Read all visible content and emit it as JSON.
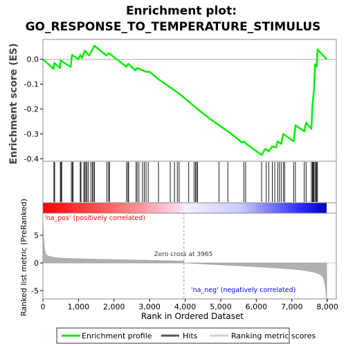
{
  "chart_data": {
    "type": "line",
    "title_line1": "Enrichment plot:",
    "title_line2": "GO_RESPONSE_TO_TEMPERATURE_STIMULUS",
    "ylabel_top": "Enrichment score (ES)",
    "ylabel_bottom": "Ranked list metric (PreRanked)",
    "xlabel": "Rank in Ordered Dataset",
    "es_yticks": [
      "0.0",
      "-0.1",
      "-0.2",
      "-0.3",
      "-0.4"
    ],
    "es_ylim": [
      -0.41,
      0.08
    ],
    "metric_yticks": [
      "5",
      "0",
      "-5"
    ],
    "metric_ylim": [
      -6.5,
      9
    ],
    "xticks": [
      "0",
      "1,000",
      "2,000",
      "3,000",
      "4,000",
      "5,000",
      "6,000",
      "7,000",
      "8,000"
    ],
    "xlim": [
      0,
      8250
    ],
    "n_genes": 7980,
    "zero_cross_label": "Zero cross at 3965",
    "zero_cross": 3965,
    "pos_label": "'na_pos' (positively correlated)",
    "neg_label": "'na_neg' (negatively correlated)",
    "legend": [
      "Enrichment profile",
      "Hits",
      "Ranking metric scores"
    ],
    "colors": {
      "profile": "#00ee00",
      "hits": "#000000",
      "metric": "#b0b0b0",
      "pos_text": "#ff0000",
      "neg_text": "#0000ff"
    },
    "es_curve": [
      [
        0,
        0.0
      ],
      [
        300,
        -0.038
      ],
      [
        320,
        -0.015
      ],
      [
        480,
        -0.035
      ],
      [
        500,
        -0.005
      ],
      [
        780,
        -0.03
      ],
      [
        820,
        0.018
      ],
      [
        1000,
        0.0
      ],
      [
        1050,
        0.018
      ],
      [
        1100,
        0.005
      ],
      [
        1180,
        0.035
      ],
      [
        1300,
        0.015
      ],
      [
        1450,
        0.055
      ],
      [
        1780,
        0.015
      ],
      [
        1850,
        0.025
      ],
      [
        2350,
        -0.03
      ],
      [
        2400,
        -0.018
      ],
      [
        2600,
        -0.045
      ],
      [
        2650,
        -0.035
      ],
      [
        2900,
        -0.05
      ],
      [
        3000,
        -0.05
      ],
      [
        3250,
        -0.08
      ],
      [
        3500,
        -0.105
      ],
      [
        3800,
        -0.135
      ],
      [
        4100,
        -0.17
      ],
      [
        4350,
        -0.2
      ],
      [
        4700,
        -0.24
      ],
      [
        5000,
        -0.27
      ],
      [
        5300,
        -0.3
      ],
      [
        5600,
        -0.335
      ],
      [
        5650,
        -0.33
      ],
      [
        5700,
        -0.338
      ],
      [
        6150,
        -0.385
      ],
      [
        6250,
        -0.36
      ],
      [
        6350,
        -0.37
      ],
      [
        6450,
        -0.35
      ],
      [
        6550,
        -0.355
      ],
      [
        6600,
        -0.33
      ],
      [
        6700,
        -0.34
      ],
      [
        6760,
        -0.3
      ],
      [
        7050,
        -0.33
      ],
      [
        7100,
        -0.265
      ],
      [
        7350,
        -0.29
      ],
      [
        7400,
        -0.255
      ],
      [
        7550,
        -0.28
      ],
      [
        7580,
        -0.18
      ],
      [
        7620,
        -0.13
      ],
      [
        7650,
        -0.02
      ],
      [
        7700,
        -0.03
      ],
      [
        7720,
        0.04
      ],
      [
        7980,
        0.0
      ]
    ],
    "hits": [
      310,
      330,
      490,
      510,
      530,
      800,
      830,
      850,
      1050,
      1070,
      1150,
      1180,
      1210,
      1240,
      1280,
      1350,
      1390,
      1420,
      1450,
      1800,
      1850,
      1870,
      2350,
      2390,
      2410,
      2620,
      2650,
      2700,
      2800,
      2850,
      2900,
      2960,
      3250,
      3580,
      3700,
      3780,
      3830,
      4100,
      4250,
      4290,
      4320,
      4350,
      4950,
      5200,
      5650,
      5700,
      6150,
      6280,
      6350,
      6450,
      6520,
      6600,
      6650,
      6700,
      6760,
      6800,
      7050,
      7100,
      7350,
      7400,
      7550,
      7580,
      7600,
      7620,
      7650,
      7680,
      7700,
      7720
    ]
  }
}
